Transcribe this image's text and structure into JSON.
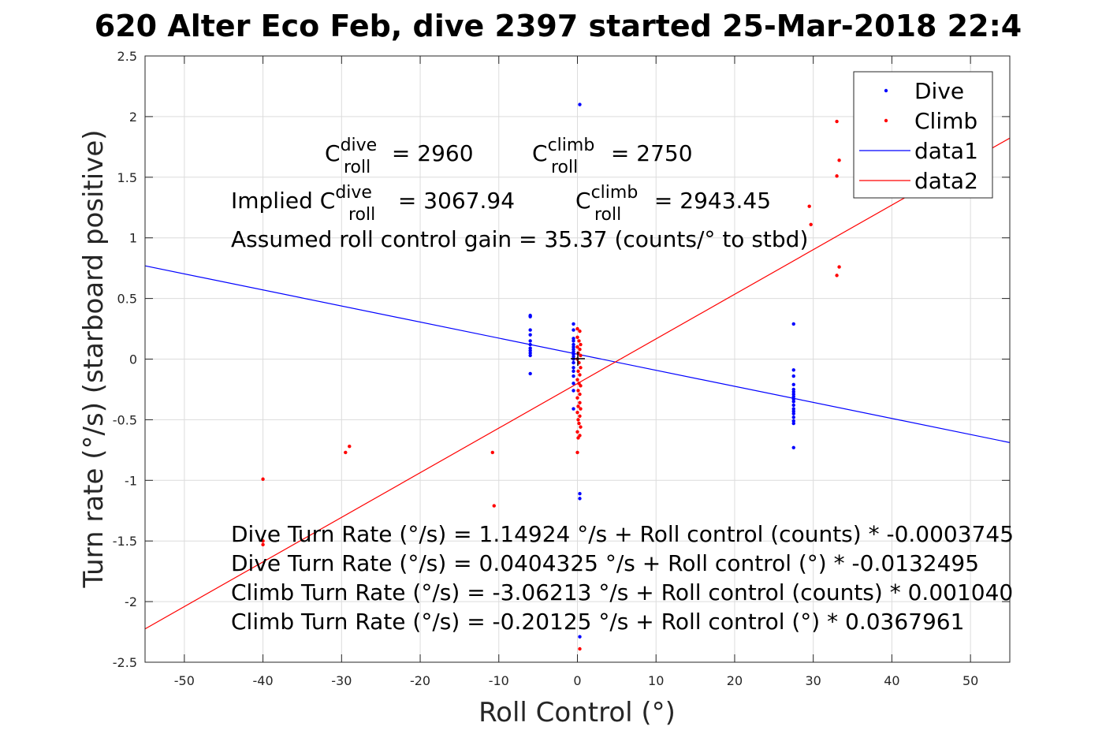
{
  "title": "620 Alter Eco Feb, dive 2397 started 25-Mar-2018 22:4",
  "chart_data": {
    "type": "scatter",
    "title": "620 Alter Eco Feb, dive 2397 started 25-Mar-2018 22:4",
    "xlabel": "Roll Control (°)",
    "ylabel": "Turn rate (°/s) (starboard positive)",
    "xlim": [
      -55,
      55
    ],
    "ylim": [
      -2.5,
      2.5
    ],
    "x_ticks": [
      -50,
      -40,
      -30,
      -20,
      -10,
      0,
      10,
      20,
      30,
      40,
      50
    ],
    "y_ticks": [
      -2.5,
      -2,
      -1.5,
      -1,
      -0.5,
      0,
      0.5,
      1,
      1.5,
      2,
      2.5
    ],
    "x_tick_labels": [
      "-50",
      "-40",
      "-30",
      "-20",
      "-10",
      "0",
      "10",
      "20",
      "30",
      "40",
      "50"
    ],
    "y_tick_labels": [
      "-2.5",
      "-2",
      "-1.5",
      "-1",
      "-0.5",
      "0",
      "0.5",
      "1",
      "1.5",
      "2",
      "2.5"
    ],
    "grid": true,
    "legend_position": "top-right",
    "series": [
      {
        "name": "Dive",
        "kind": "points",
        "color": "#0000ff",
        "points": [
          [
            -6,
            0.36
          ],
          [
            -6,
            0.35
          ],
          [
            -6,
            0.24
          ],
          [
            -6,
            0.2
          ],
          [
            -6,
            0.15
          ],
          [
            -6,
            0.12
          ],
          [
            -6,
            0.09
          ],
          [
            -6,
            0.07
          ],
          [
            -6,
            0.05
          ],
          [
            -6,
            0.03
          ],
          [
            -6,
            -0.12
          ],
          [
            -0.5,
            0.29
          ],
          [
            -0.5,
            0.24
          ],
          [
            -0.5,
            0.17
          ],
          [
            -0.5,
            0.15
          ],
          [
            -0.5,
            0.12
          ],
          [
            -0.5,
            0.1
          ],
          [
            -0.5,
            0.08
          ],
          [
            -0.5,
            0.06
          ],
          [
            -0.5,
            0.04
          ],
          [
            -0.5,
            0.02
          ],
          [
            -0.5,
            0.0
          ],
          [
            -0.5,
            -0.03
          ],
          [
            -0.5,
            -0.07
          ],
          [
            -0.5,
            -0.1
          ],
          [
            -0.5,
            -0.14
          ],
          [
            -0.5,
            -0.2
          ],
          [
            -0.5,
            -0.26
          ],
          [
            -0.5,
            -0.41
          ],
          [
            0.3,
            2.1
          ],
          [
            0.3,
            -1.11
          ],
          [
            0.3,
            -1.15
          ],
          [
            0.3,
            -2.29
          ],
          [
            27.5,
            0.29
          ],
          [
            27.5,
            -0.09
          ],
          [
            27.5,
            -0.14
          ],
          [
            27.5,
            -0.21
          ],
          [
            27.5,
            -0.25
          ],
          [
            27.5,
            -0.27
          ],
          [
            27.5,
            -0.29
          ],
          [
            27.5,
            -0.31
          ],
          [
            27.5,
            -0.33
          ],
          [
            27.5,
            -0.35
          ],
          [
            27.5,
            -0.38
          ],
          [
            27.5,
            -0.41
          ],
          [
            27.5,
            -0.43
          ],
          [
            27.5,
            -0.45
          ],
          [
            27.5,
            -0.48
          ],
          [
            27.5,
            -0.51
          ],
          [
            27.5,
            -0.53
          ],
          [
            27.5,
            -0.73
          ]
        ]
      },
      {
        "name": "Climb",
        "kind": "points",
        "color": "#ff0000",
        "points": [
          [
            -40,
            -0.99
          ],
          [
            -40,
            -1.5
          ],
          [
            -40,
            -1.53
          ],
          [
            -29.5,
            -0.77
          ],
          [
            -29,
            -0.72
          ],
          [
            -10.8,
            -0.77
          ],
          [
            -10.6,
            -1.21
          ],
          [
            0,
            0.25
          ],
          [
            0.3,
            0.23
          ],
          [
            0,
            0.18
          ],
          [
            0.2,
            0.15
          ],
          [
            0.4,
            0.12
          ],
          [
            0,
            0.1
          ],
          [
            0.3,
            0.08
          ],
          [
            0.1,
            0.05
          ],
          [
            0.4,
            0.03
          ],
          [
            0,
            0.0
          ],
          [
            0.2,
            -0.03
          ],
          [
            0.4,
            -0.07
          ],
          [
            0.1,
            -0.1
          ],
          [
            0.3,
            -0.13
          ],
          [
            0,
            -0.17
          ],
          [
            0.2,
            -0.2
          ],
          [
            0.4,
            -0.22
          ],
          [
            0.1,
            -0.26
          ],
          [
            0.3,
            -0.29
          ],
          [
            0,
            -0.32
          ],
          [
            0.3,
            -0.36
          ],
          [
            0.1,
            -0.39
          ],
          [
            0.4,
            -0.41
          ],
          [
            0,
            -0.44
          ],
          [
            0.3,
            -0.47
          ],
          [
            0.1,
            -0.5
          ],
          [
            0.2,
            -0.53
          ],
          [
            0.4,
            -0.56
          ],
          [
            0,
            -0.6
          ],
          [
            0.3,
            -0.63
          ],
          [
            0.1,
            -0.65
          ],
          [
            0,
            -0.77
          ],
          [
            0.3,
            -2.39
          ],
          [
            29.5,
            1.26
          ],
          [
            29.7,
            1.11
          ],
          [
            33,
            1.96
          ],
          [
            33,
            1.51
          ],
          [
            33.3,
            1.64
          ],
          [
            33,
            0.69
          ],
          [
            33.3,
            0.76
          ]
        ]
      },
      {
        "name": "data1",
        "kind": "line",
        "color": "#0000ff",
        "intercept": 0.0404325,
        "slope": -0.0132495
      },
      {
        "name": "data2",
        "kind": "line",
        "color": "#ff0000",
        "intercept": -0.20125,
        "slope": 0.0367961
      }
    ],
    "legend": [
      {
        "label": "Dive",
        "color": "#0000ff",
        "style": "point"
      },
      {
        "label": "Climb",
        "color": "#ff0000",
        "style": "point"
      },
      {
        "label": "data1",
        "color": "#0000ff",
        "style": "line"
      },
      {
        "label": "data2",
        "color": "#ff0000",
        "style": "line"
      }
    ],
    "annotations": {
      "c_dive_prefix": "C",
      "c_dive_sup": "dive",
      "c_dive_sub": "roll",
      "c_dive_value": " = 2960",
      "c_climb_prefix": "C",
      "c_climb_sup": "climb",
      "c_climb_sub": "roll",
      "c_climb_value": " = 2750",
      "implied_prefix": "Implied C",
      "implied_dive_sup": "dive",
      "implied_dive_sub": "roll",
      "implied_dive_value": " = 3067.94",
      "implied_climb_prefix": "C",
      "implied_climb_sup": "climb",
      "implied_climb_sub": "roll",
      "implied_climb_value": " = 2943.45",
      "gain": "Assumed roll control gain = 35.37 (counts/° to stbd)",
      "eq1": "Dive Turn Rate (°/s) = 1.14924 °/s + Roll control (counts) * -0.0003745",
      "eq2": "Dive Turn Rate (°/s) = 0.0404325 °/s + Roll control (°) * -0.0132495",
      "eq3": "Climb Turn Rate (°/s) = -3.06213 °/s + Roll control (counts) * 0.001040",
      "eq4": "Climb Turn Rate (°/s) = -0.20125 °/s + Roll control (°) * 0.0367961"
    }
  }
}
